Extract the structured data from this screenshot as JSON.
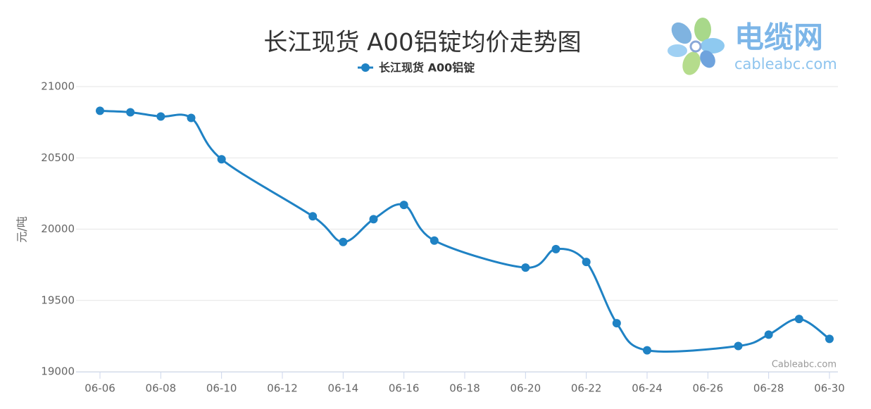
{
  "chart_data": {
    "type": "line",
    "title": "长江现货 A00铝锭均价走势图",
    "y_label": "元/吨",
    "credits": "Cableabc.com",
    "x": [
      "06-06",
      "06-07",
      "06-08",
      "06-09",
      "06-10",
      "06-13",
      "06-14",
      "06-15",
      "06-16",
      "06-17",
      "06-20",
      "06-21",
      "06-22",
      "06-23",
      "06-24",
      "06-27",
      "06-28",
      "06-29",
      "06-30"
    ],
    "series": [
      {
        "name": "长江现货 A00铝锭",
        "color": "#1f82c4",
        "values": [
          20830,
          20820,
          20790,
          20780,
          20490,
          20090,
          19910,
          20070,
          20170,
          19920,
          19730,
          19860,
          19770,
          19340,
          19150,
          19180,
          19260,
          19370,
          19230
        ]
      }
    ],
    "xlim": [
      "06-06",
      "06-30"
    ],
    "xticks": [
      "06-06",
      "06-08",
      "06-10",
      "06-12",
      "06-14",
      "06-16",
      "06-18",
      "06-20",
      "06-22",
      "06-24",
      "06-26",
      "06-28",
      "06-30"
    ],
    "ylim": [
      19000,
      21000
    ],
    "yticks": [
      19000,
      19500,
      20000,
      20500,
      21000
    ],
    "grid": true
  },
  "logo": {
    "name": "电缆网",
    "url": "cableabc.com"
  }
}
